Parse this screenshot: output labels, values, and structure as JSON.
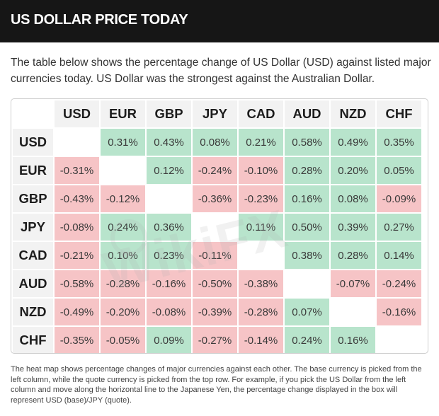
{
  "header": {
    "title": "US DOLLAR PRICE TODAY"
  },
  "intro": "The table below shows the percentage change of US Dollar (USD) against listed major currencies today. US Dollar was the strongest against the Australian Dollar.",
  "heatmap": {
    "columns": [
      "USD",
      "EUR",
      "GBP",
      "JPY",
      "CAD",
      "AUD",
      "NZD",
      "CHF"
    ],
    "rows": [
      {
        "label": "USD",
        "cells": [
          "",
          "0.31%",
          "0.43%",
          "0.08%",
          "0.21%",
          "0.58%",
          "0.49%",
          "0.35%"
        ]
      },
      {
        "label": "EUR",
        "cells": [
          "-0.31%",
          "",
          "0.12%",
          "-0.24%",
          "-0.10%",
          "0.28%",
          "0.20%",
          "0.05%"
        ]
      },
      {
        "label": "GBP",
        "cells": [
          "-0.43%",
          "-0.12%",
          "",
          "-0.36%",
          "-0.23%",
          "0.16%",
          "0.08%",
          "-0.09%"
        ]
      },
      {
        "label": "JPY",
        "cells": [
          "-0.08%",
          "0.24%",
          "0.36%",
          "",
          "0.11%",
          "0.50%",
          "0.39%",
          "0.27%"
        ]
      },
      {
        "label": "CAD",
        "cells": [
          "-0.21%",
          "0.10%",
          "0.23%",
          "-0.11%",
          "",
          "0.38%",
          "0.28%",
          "0.14%"
        ]
      },
      {
        "label": "AUD",
        "cells": [
          "-0.58%",
          "-0.28%",
          "-0.16%",
          "-0.50%",
          "-0.38%",
          "",
          "-0.07%",
          "-0.24%"
        ]
      },
      {
        "label": "NZD",
        "cells": [
          "-0.49%",
          "-0.20%",
          "-0.08%",
          "-0.39%",
          "-0.28%",
          "0.07%",
          "",
          "-0.16%"
        ]
      },
      {
        "label": "CHF",
        "cells": [
          "-0.35%",
          "-0.05%",
          "0.09%",
          "-0.27%",
          "-0.14%",
          "0.24%",
          "0.16%",
          ""
        ]
      }
    ],
    "colors": {
      "positive": "#b8e4cc",
      "negative": "#f6c4c6",
      "header_bg": "#f2f2f2"
    }
  },
  "watermark": "WikiFX",
  "footnote": "The heat map shows percentage changes of major currencies against each other. The base currency is picked from the left column, while the quote currency is picked from the top row. For example, if you pick the US Dollar from the left column and move along the horizontal line to the Japanese Yen, the percentage change displayed in the box will represent USD (base)/JPY (quote)."
}
